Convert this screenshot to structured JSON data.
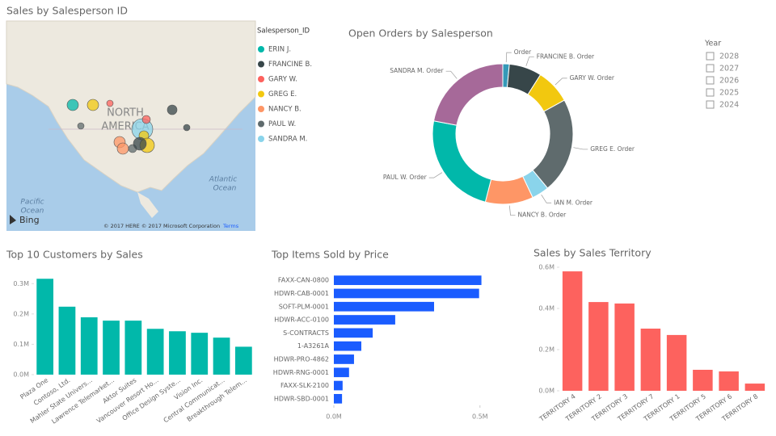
{
  "map": {
    "title": "Sales by Salesperson ID",
    "legend_title": "Salesperson_ID",
    "series": [
      {
        "name": "ERIN J.",
        "color": "#01B8AA"
      },
      {
        "name": "FRANCINE B.",
        "color": "#374649"
      },
      {
        "name": "GARY W.",
        "color": "#FD625E"
      },
      {
        "name": "GREG E.",
        "color": "#F2C80F"
      },
      {
        "name": "NANCY B.",
        "color": "#FE9666"
      },
      {
        "name": "PAUL W.",
        "color": "#5F6B6D"
      },
      {
        "name": "SANDRA M.",
        "color": "#8AD4EB"
      }
    ],
    "labels": [
      "NORTH",
      "AMERICA",
      "Atlantic",
      "Ocean",
      "Pacific",
      "Ocean"
    ],
    "provider": "Bing",
    "attribution": "© 2017 HERE © 2017 Microsoft Corporation",
    "terms": "Terms"
  },
  "slicer": {
    "title": "Year",
    "options": [
      "2028",
      "2027",
      "2026",
      "2025",
      "2024"
    ]
  },
  "chart_data": [
    {
      "type": "pie",
      "title": "Open Orders by Salesperson",
      "donut": true,
      "categories": [
        "Order",
        "FRANCINE B. Order",
        "GARY W. Order",
        "GREG E. Order",
        "IAN M. Order",
        "NANCY B. Order",
        "PAUL W. Order",
        "SANDRA M. Order"
      ],
      "values": [
        1.5,
        7.5,
        8,
        22,
        4,
        11,
        24,
        22
      ],
      "colors": [
        "#3599B8",
        "#374649",
        "#F2C80F",
        "#5F6B6D",
        "#8AD4EB",
        "#FE9666",
        "#01B8AA",
        "#A66999"
      ]
    },
    {
      "type": "bar",
      "title": "Top 10 Customers by Sales",
      "orientation": "vertical",
      "color": "#01B8AA",
      "categories": [
        "Plaza One",
        "Contoso, Ltd.",
        "Mahler State Univers...",
        "Lawrence Telemarket...",
        "Aktor Suites",
        "Vancouver Resort Ho...",
        "Office Design Syste...",
        "Vision Inc.",
        "Central Communicat...",
        "Breakthrough Telem..."
      ],
      "values": [
        0.316,
        0.224,
        0.189,
        0.178,
        0.178,
        0.151,
        0.143,
        0.138,
        0.122,
        0.092
      ],
      "ylim": [
        0,
        0.33
      ],
      "yticks": [
        {
          "value": 0,
          "label": "0.0M"
        },
        {
          "value": 0.1,
          "label": "0.1M"
        },
        {
          "value": 0.2,
          "label": "0.2M"
        },
        {
          "value": 0.3,
          "label": "0.3M"
        }
      ]
    },
    {
      "type": "bar",
      "title": "Top Items Sold by Price",
      "orientation": "horizontal",
      "color": "#1A5CFF",
      "categories": [
        "FAXX-CAN-0800",
        "HDWR-CAB-0001",
        "SOFT-PLM-0001",
        "HDWR-ACC-0100",
        "S-CONTRACTS",
        "1-A3261A",
        "HDWR-PRO-4862",
        "HDWR-RNG-0001",
        "FAXX-SLK-2100",
        "HDWR-SBD-0001"
      ],
      "values": [
        0.505,
        0.497,
        0.343,
        0.21,
        0.133,
        0.094,
        0.069,
        0.052,
        0.03,
        0.028
      ],
      "xlim": [
        0,
        0.52
      ],
      "xticks": [
        {
          "value": 0,
          "label": "0.0M"
        },
        {
          "value": 0.5,
          "label": "0.5M"
        }
      ]
    },
    {
      "type": "bar",
      "title": "Sales by Sales Territory",
      "orientation": "vertical",
      "color": "#FD625E",
      "categories": [
        "TERRITORY 4",
        "TERRITORY 2",
        "TERRITORY 3",
        "TERRITORY 7",
        "TERRITORY 1",
        "TERRITORY 5",
        "TERRITORY 6",
        "TERRITORY 8"
      ],
      "values": [
        0.58,
        0.431,
        0.424,
        0.302,
        0.271,
        0.102,
        0.094,
        0.035
      ],
      "ylim": [
        0,
        0.6
      ],
      "yticks": [
        {
          "value": 0,
          "label": "0.0M"
        },
        {
          "value": 0.2,
          "label": "0.2M"
        },
        {
          "value": 0.4,
          "label": "0.4M"
        },
        {
          "value": 0.6,
          "label": "0.6M"
        }
      ]
    }
  ]
}
